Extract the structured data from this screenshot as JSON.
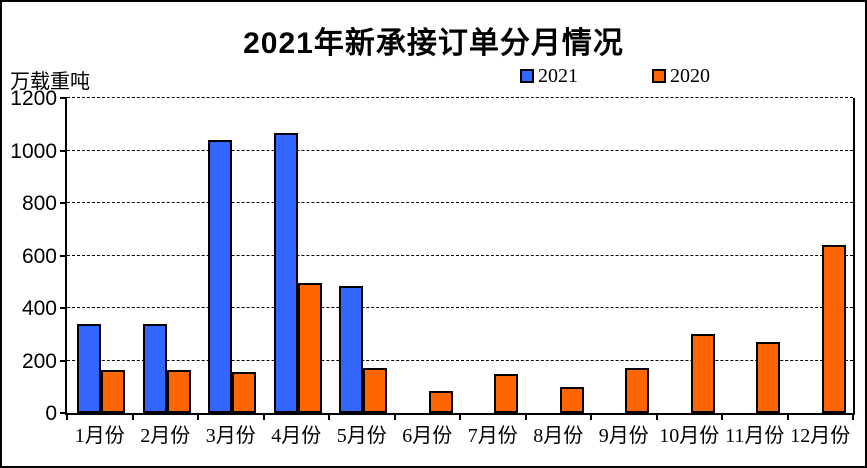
{
  "chart_data": {
    "type": "bar",
    "title": "2021年新承接订单分月情况",
    "ylabel": "万载重吨",
    "xlabel": "",
    "categories": [
      "1月份",
      "2月份",
      "3月份",
      "4月份",
      "5月份",
      "6月份",
      "7月份",
      "8月份",
      "9月份",
      "10月份",
      "11月份",
      "12月份"
    ],
    "series": [
      {
        "name": "2021",
        "color": "#3366FF",
        "values": [
          340,
          340,
          1040,
          1065,
          485,
          null,
          null,
          null,
          null,
          null,
          null,
          null
        ]
      },
      {
        "name": "2020",
        "color": "#FF6600",
        "values": [
          165,
          165,
          155,
          495,
          170,
          85,
          150,
          100,
          170,
          300,
          270,
          640
        ]
      }
    ],
    "ylim": [
      0,
      1200
    ],
    "yticks": [
      0,
      200,
      400,
      600,
      800,
      1000,
      1200
    ],
    "grid": "horizontal-dashed",
    "legend_position": "top-center",
    "axis_color": "#000000",
    "background": "#FFFFFF"
  }
}
